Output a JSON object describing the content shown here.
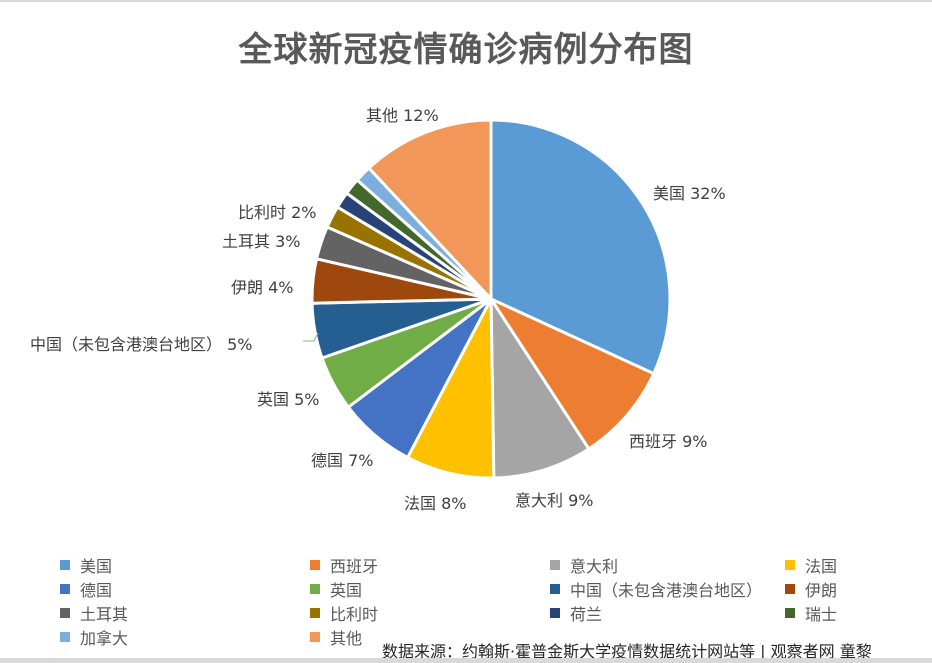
{
  "title": "全球新冠疫情确诊病例分布图",
  "source": "数据来源：约翰斯·霍普金斯大学疫情数据统计网站等 | 观察者网 童黎",
  "chart_data": {
    "type": "pie",
    "title": "全球新冠疫情确诊病例分布图",
    "start_angle": "12 o'clock, clockwise",
    "categories": [
      "美国",
      "西班牙",
      "意大利",
      "法国",
      "德国",
      "英国",
      "中国（未包含港澳台地区）",
      "伊朗",
      "土耳其",
      "比利时",
      "荷兰",
      "瑞士",
      "加拿大",
      "其他"
    ],
    "values": [
      32,
      9,
      9,
      8,
      7,
      5,
      5,
      4,
      3,
      2,
      1.5,
      1.5,
      1.5,
      12
    ],
    "colors": [
      "#5B9BD5",
      "#ED7D31",
      "#A5A5A5",
      "#FFC000",
      "#4472C4",
      "#70AD47",
      "#255E91",
      "#9E480E",
      "#636363",
      "#997300",
      "#264478",
      "#43682B",
      "#7CAFDD",
      "#F1975A"
    ],
    "data_labels": [
      {
        "text": "美国 32%"
      },
      {
        "text": "西班牙 9%"
      },
      {
        "text": "意大利 9%"
      },
      {
        "text": "法国 8%"
      },
      {
        "text": "德国 7%"
      },
      {
        "text": "英国 5%"
      },
      {
        "text": "中国（未包含港澳台地区） 5%"
      },
      {
        "text": "伊朗 4%"
      },
      {
        "text": "土耳其 3%"
      },
      {
        "text": "比利时 2%"
      },
      {
        "text": "其他 12%"
      }
    ],
    "legend_position": "bottom",
    "legend": [
      "美国",
      "西班牙",
      "意大利",
      "法国",
      "德国",
      "英国",
      "中国（未包含港澳台地区）",
      "伊朗",
      "土耳其",
      "比利时",
      "荷兰",
      "瑞士",
      "加拿大",
      "其他"
    ]
  },
  "labels": {
    "usa": "美国 32%",
    "spain": "西班牙 9%",
    "italy": "意大利 9%",
    "france": "法国 8%",
    "germany": "德国 7%",
    "uk": "英国 5%",
    "china": "中国（未包含港澳台地区） 5%",
    "iran": "伊朗 4%",
    "turkey": "土耳其 3%",
    "belgium": "比利时 2%",
    "other": "其他 12%"
  }
}
